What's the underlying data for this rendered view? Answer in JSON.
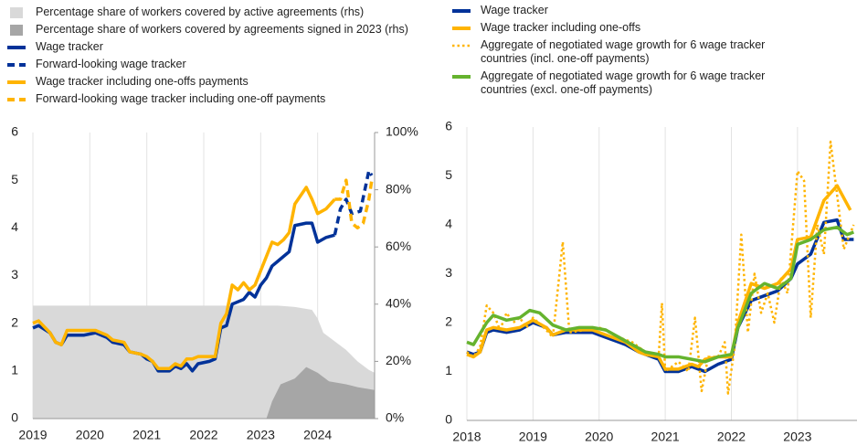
{
  "chart_data": [
    {
      "type": "line",
      "xlim": [
        2019,
        2025
      ],
      "xticks": [
        2019,
        2020,
        2021,
        2022,
        2023,
        2024
      ],
      "ylim": [
        0,
        6
      ],
      "yticks": [
        0,
        1,
        2,
        3,
        4,
        5,
        6
      ],
      "y2lim": [
        0,
        100
      ],
      "y2ticks": [
        {
          "value": 0,
          "label": "0%"
        },
        {
          "value": 20,
          "label": "20%"
        },
        {
          "value": 40,
          "label": "40%"
        },
        {
          "value": 60,
          "label": "60%"
        },
        {
          "value": 80,
          "label": "80%"
        },
        {
          "value": 100,
          "label": "100%"
        }
      ],
      "grid": true,
      "series": [
        {
          "name": "Percentage share of workers covered by active agreements (rhs)",
          "kind": "area",
          "axis": "y2",
          "color": "#d9d9d9",
          "x": [
            2019,
            2020,
            2021,
            2022,
            2022.9,
            2023.3,
            2023.6,
            2023.9,
            2024.0,
            2024.1,
            2024.3,
            2024.5,
            2024.7,
            2024.9,
            2025
          ],
          "values": [
            39.5,
            39.5,
            39.5,
            39.5,
            39.5,
            39.5,
            39,
            38,
            35,
            30,
            27,
            24,
            20,
            17,
            16
          ]
        },
        {
          "name": "Percentage share of workers covered by agreements signed in 2023 (rhs)",
          "kind": "area",
          "axis": "y2",
          "color": "#a6a6a6",
          "x": [
            2023.1,
            2023.2,
            2023.35,
            2023.6,
            2023.8,
            2024.0,
            2024.2,
            2024.5,
            2024.7,
            2025
          ],
          "values": [
            0,
            6,
            12,
            14,
            18,
            16,
            13,
            12,
            11,
            10
          ]
        },
        {
          "name": "Wage tracker",
          "kind": "line",
          "color": "#003299",
          "x": [
            2019.0,
            2019.1,
            2019.3,
            2019.4,
            2019.5,
            2019.6,
            2019.9,
            2020.1,
            2020.3,
            2020.4,
            2020.6,
            2020.7,
            2020.9,
            2021.0,
            2021.1,
            2021.2,
            2021.4,
            2021.5,
            2021.6,
            2021.7,
            2021.8,
            2021.9,
            2022.1,
            2022.2,
            2022.3,
            2022.4,
            2022.5,
            2022.7,
            2022.8,
            2022.9,
            2023.0,
            2023.1,
            2023.2,
            2023.3,
            2023.4,
            2023.5,
            2023.6,
            2023.8,
            2023.9,
            2024.0,
            2024.15,
            2024.3
          ],
          "values": [
            1.9,
            1.95,
            1.8,
            1.6,
            1.55,
            1.75,
            1.75,
            1.8,
            1.7,
            1.6,
            1.55,
            1.4,
            1.35,
            1.25,
            1.2,
            1.0,
            1.0,
            1.1,
            1.05,
            1.15,
            1.0,
            1.15,
            1.2,
            1.25,
            1.9,
            1.95,
            2.4,
            2.5,
            2.65,
            2.55,
            2.8,
            2.95,
            3.2,
            3.3,
            3.4,
            3.5,
            4.05,
            4.1,
            4.1,
            3.7,
            3.8,
            3.85
          ]
        },
        {
          "name": "Forward-looking wage tracker",
          "kind": "line",
          "dash": "dashed",
          "color": "#003299",
          "x": [
            2024.3,
            2024.4,
            2024.5,
            2024.6,
            2024.75,
            2024.9,
            2024.95
          ],
          "values": [
            3.85,
            4.4,
            4.6,
            4.3,
            4.35,
            5.2,
            5.1
          ]
        },
        {
          "name": "Wage tracker including one-offs payments",
          "kind": "line",
          "color": "#ffb400",
          "x": [
            2019.0,
            2019.1,
            2019.3,
            2019.4,
            2019.5,
            2019.6,
            2019.9,
            2020.1,
            2020.3,
            2020.4,
            2020.6,
            2020.7,
            2020.9,
            2021.0,
            2021.1,
            2021.2,
            2021.4,
            2021.5,
            2021.6,
            2021.7,
            2021.8,
            2021.9,
            2022.1,
            2022.2,
            2022.3,
            2022.4,
            2022.5,
            2022.6,
            2022.7,
            2022.8,
            2022.9,
            2023.0,
            2023.1,
            2023.2,
            2023.3,
            2023.4,
            2023.5,
            2023.6,
            2023.8,
            2023.9,
            2024.0,
            2024.15,
            2024.3
          ],
          "values": [
            2.0,
            2.05,
            1.8,
            1.6,
            1.55,
            1.85,
            1.85,
            1.85,
            1.75,
            1.65,
            1.6,
            1.4,
            1.35,
            1.3,
            1.2,
            1.05,
            1.05,
            1.15,
            1.1,
            1.25,
            1.25,
            1.3,
            1.3,
            1.3,
            2.0,
            2.2,
            2.8,
            2.7,
            2.85,
            2.7,
            2.8,
            3.1,
            3.4,
            3.7,
            3.65,
            3.75,
            3.9,
            4.5,
            4.85,
            4.6,
            4.3,
            4.4,
            4.6
          ]
        },
        {
          "name": "Forward-looking wage tracker including one-off payments",
          "kind": "line",
          "dash": "dashed",
          "color": "#ffb400",
          "x": [
            2024.3,
            2024.4,
            2024.5,
            2024.6,
            2024.7,
            2024.8,
            2024.9,
            2024.95
          ],
          "values": [
            4.6,
            4.6,
            5.0,
            4.1,
            4.0,
            4.1,
            4.6,
            5.0
          ]
        }
      ]
    },
    {
      "type": "line",
      "xlim": [
        2018,
        2023.9
      ],
      "xticks": [
        2018,
        2019,
        2020,
        2021,
        2022,
        2023
      ],
      "ylim": [
        0,
        6
      ],
      "yticks": [
        0,
        1,
        2,
        3,
        4,
        5,
        6
      ],
      "grid": true,
      "series": [
        {
          "name": "Wage tracker",
          "kind": "line",
          "color": "#003299",
          "x": [
            2018.0,
            2018.1,
            2018.2,
            2018.3,
            2018.4,
            2018.6,
            2018.8,
            2019.0,
            2019.2,
            2019.3,
            2019.5,
            2019.9,
            2020.1,
            2020.3,
            2020.4,
            2020.6,
            2020.7,
            2020.9,
            2021.0,
            2021.2,
            2021.4,
            2021.5,
            2021.6,
            2021.8,
            2022.0,
            2022.1,
            2022.3,
            2022.5,
            2022.7,
            2022.9,
            2023.0,
            2023.2,
            2023.4,
            2023.6,
            2023.7,
            2023.85
          ],
          "values": [
            1.4,
            1.35,
            1.4,
            1.8,
            1.85,
            1.8,
            1.85,
            2.0,
            1.9,
            1.75,
            1.8,
            1.8,
            1.7,
            1.6,
            1.55,
            1.4,
            1.35,
            1.25,
            1.0,
            1.0,
            1.1,
            1.05,
            1.0,
            1.15,
            1.25,
            1.9,
            2.45,
            2.55,
            2.65,
            2.9,
            3.2,
            3.4,
            4.05,
            4.1,
            3.7,
            3.7
          ]
        },
        {
          "name": "Wage tracker including one-offs",
          "kind": "line",
          "color": "#ffb400",
          "x": [
            2018.0,
            2018.1,
            2018.2,
            2018.3,
            2018.4,
            2018.6,
            2018.8,
            2019.0,
            2019.2,
            2019.3,
            2019.5,
            2019.9,
            2020.1,
            2020.3,
            2020.4,
            2020.6,
            2020.7,
            2020.9,
            2021.0,
            2021.2,
            2021.4,
            2021.5,
            2021.6,
            2021.8,
            2022.0,
            2022.1,
            2022.3,
            2022.5,
            2022.7,
            2022.9,
            2023.0,
            2023.2,
            2023.4,
            2023.6,
            2023.8
          ],
          "values": [
            1.35,
            1.3,
            1.4,
            1.85,
            1.9,
            1.85,
            1.9,
            2.05,
            1.9,
            1.75,
            1.85,
            1.85,
            1.75,
            1.65,
            1.6,
            1.4,
            1.35,
            1.3,
            1.05,
            1.05,
            1.15,
            1.1,
            1.25,
            1.3,
            1.3,
            2.0,
            2.8,
            2.7,
            2.8,
            3.1,
            3.7,
            3.75,
            4.5,
            4.8,
            4.3
          ]
        },
        {
          "name": "Aggregate of negotiated wage growth for 6 wage tracker countries (incl. one-off payments)",
          "kind": "line",
          "dash": "dotted",
          "color": "#ffb400",
          "x": [
            2018.0,
            2018.1,
            2018.2,
            2018.3,
            2018.4,
            2018.5,
            2018.6,
            2018.7,
            2018.8,
            2018.9,
            2019.0,
            2019.2,
            2019.3,
            2019.45,
            2019.55,
            2019.8,
            2020.0,
            2020.3,
            2020.5,
            2020.7,
            2020.9,
            2020.95,
            2021.0,
            2021.2,
            2021.35,
            2021.45,
            2021.55,
            2021.65,
            2021.8,
            2021.9,
            2021.95,
            2022.05,
            2022.15,
            2022.25,
            2022.35,
            2022.45,
            2022.55,
            2022.65,
            2022.75,
            2022.85,
            2023.0,
            2023.1,
            2023.2,
            2023.3,
            2023.4,
            2023.5,
            2023.6,
            2023.7,
            2023.85
          ],
          "values": [
            1.4,
            1.3,
            1.5,
            2.35,
            2.2,
            1.85,
            2.2,
            2.0,
            2.1,
            1.9,
            2.1,
            1.85,
            1.7,
            3.65,
            1.8,
            1.85,
            1.9,
            1.7,
            1.6,
            1.4,
            1.3,
            2.4,
            1.0,
            1.2,
            1.0,
            2.1,
            0.6,
            1.3,
            1.3,
            1.6,
            0.55,
            1.5,
            3.8,
            1.8,
            3.0,
            2.2,
            2.6,
            2.0,
            2.9,
            2.6,
            5.1,
            4.9,
            2.1,
            4.0,
            3.4,
            5.7,
            4.6,
            3.5,
            4.0
          ]
        },
        {
          "name": "Aggregate of negotiated wage growth for 6 wage tracker countries (excl. one-off payments)",
          "kind": "line",
          "color": "#65b32e",
          "x": [
            2018.0,
            2018.1,
            2018.3,
            2018.4,
            2018.6,
            2018.8,
            2018.95,
            2019.1,
            2019.3,
            2019.5,
            2019.7,
            2019.9,
            2020.1,
            2020.3,
            2020.5,
            2020.7,
            2020.9,
            2021.0,
            2021.2,
            2021.4,
            2021.6,
            2021.8,
            2022.0,
            2022.1,
            2022.3,
            2022.5,
            2022.7,
            2022.9,
            2023.0,
            2023.2,
            2023.4,
            2023.6,
            2023.75,
            2023.85
          ],
          "values": [
            1.6,
            1.55,
            2.0,
            2.15,
            2.05,
            2.1,
            2.25,
            2.2,
            1.95,
            1.85,
            1.9,
            1.9,
            1.85,
            1.7,
            1.55,
            1.4,
            1.35,
            1.3,
            1.3,
            1.25,
            1.2,
            1.3,
            1.35,
            1.9,
            2.6,
            2.8,
            2.7,
            2.9,
            3.6,
            3.7,
            3.9,
            3.95,
            3.8,
            3.85
          ]
        }
      ]
    }
  ]
}
